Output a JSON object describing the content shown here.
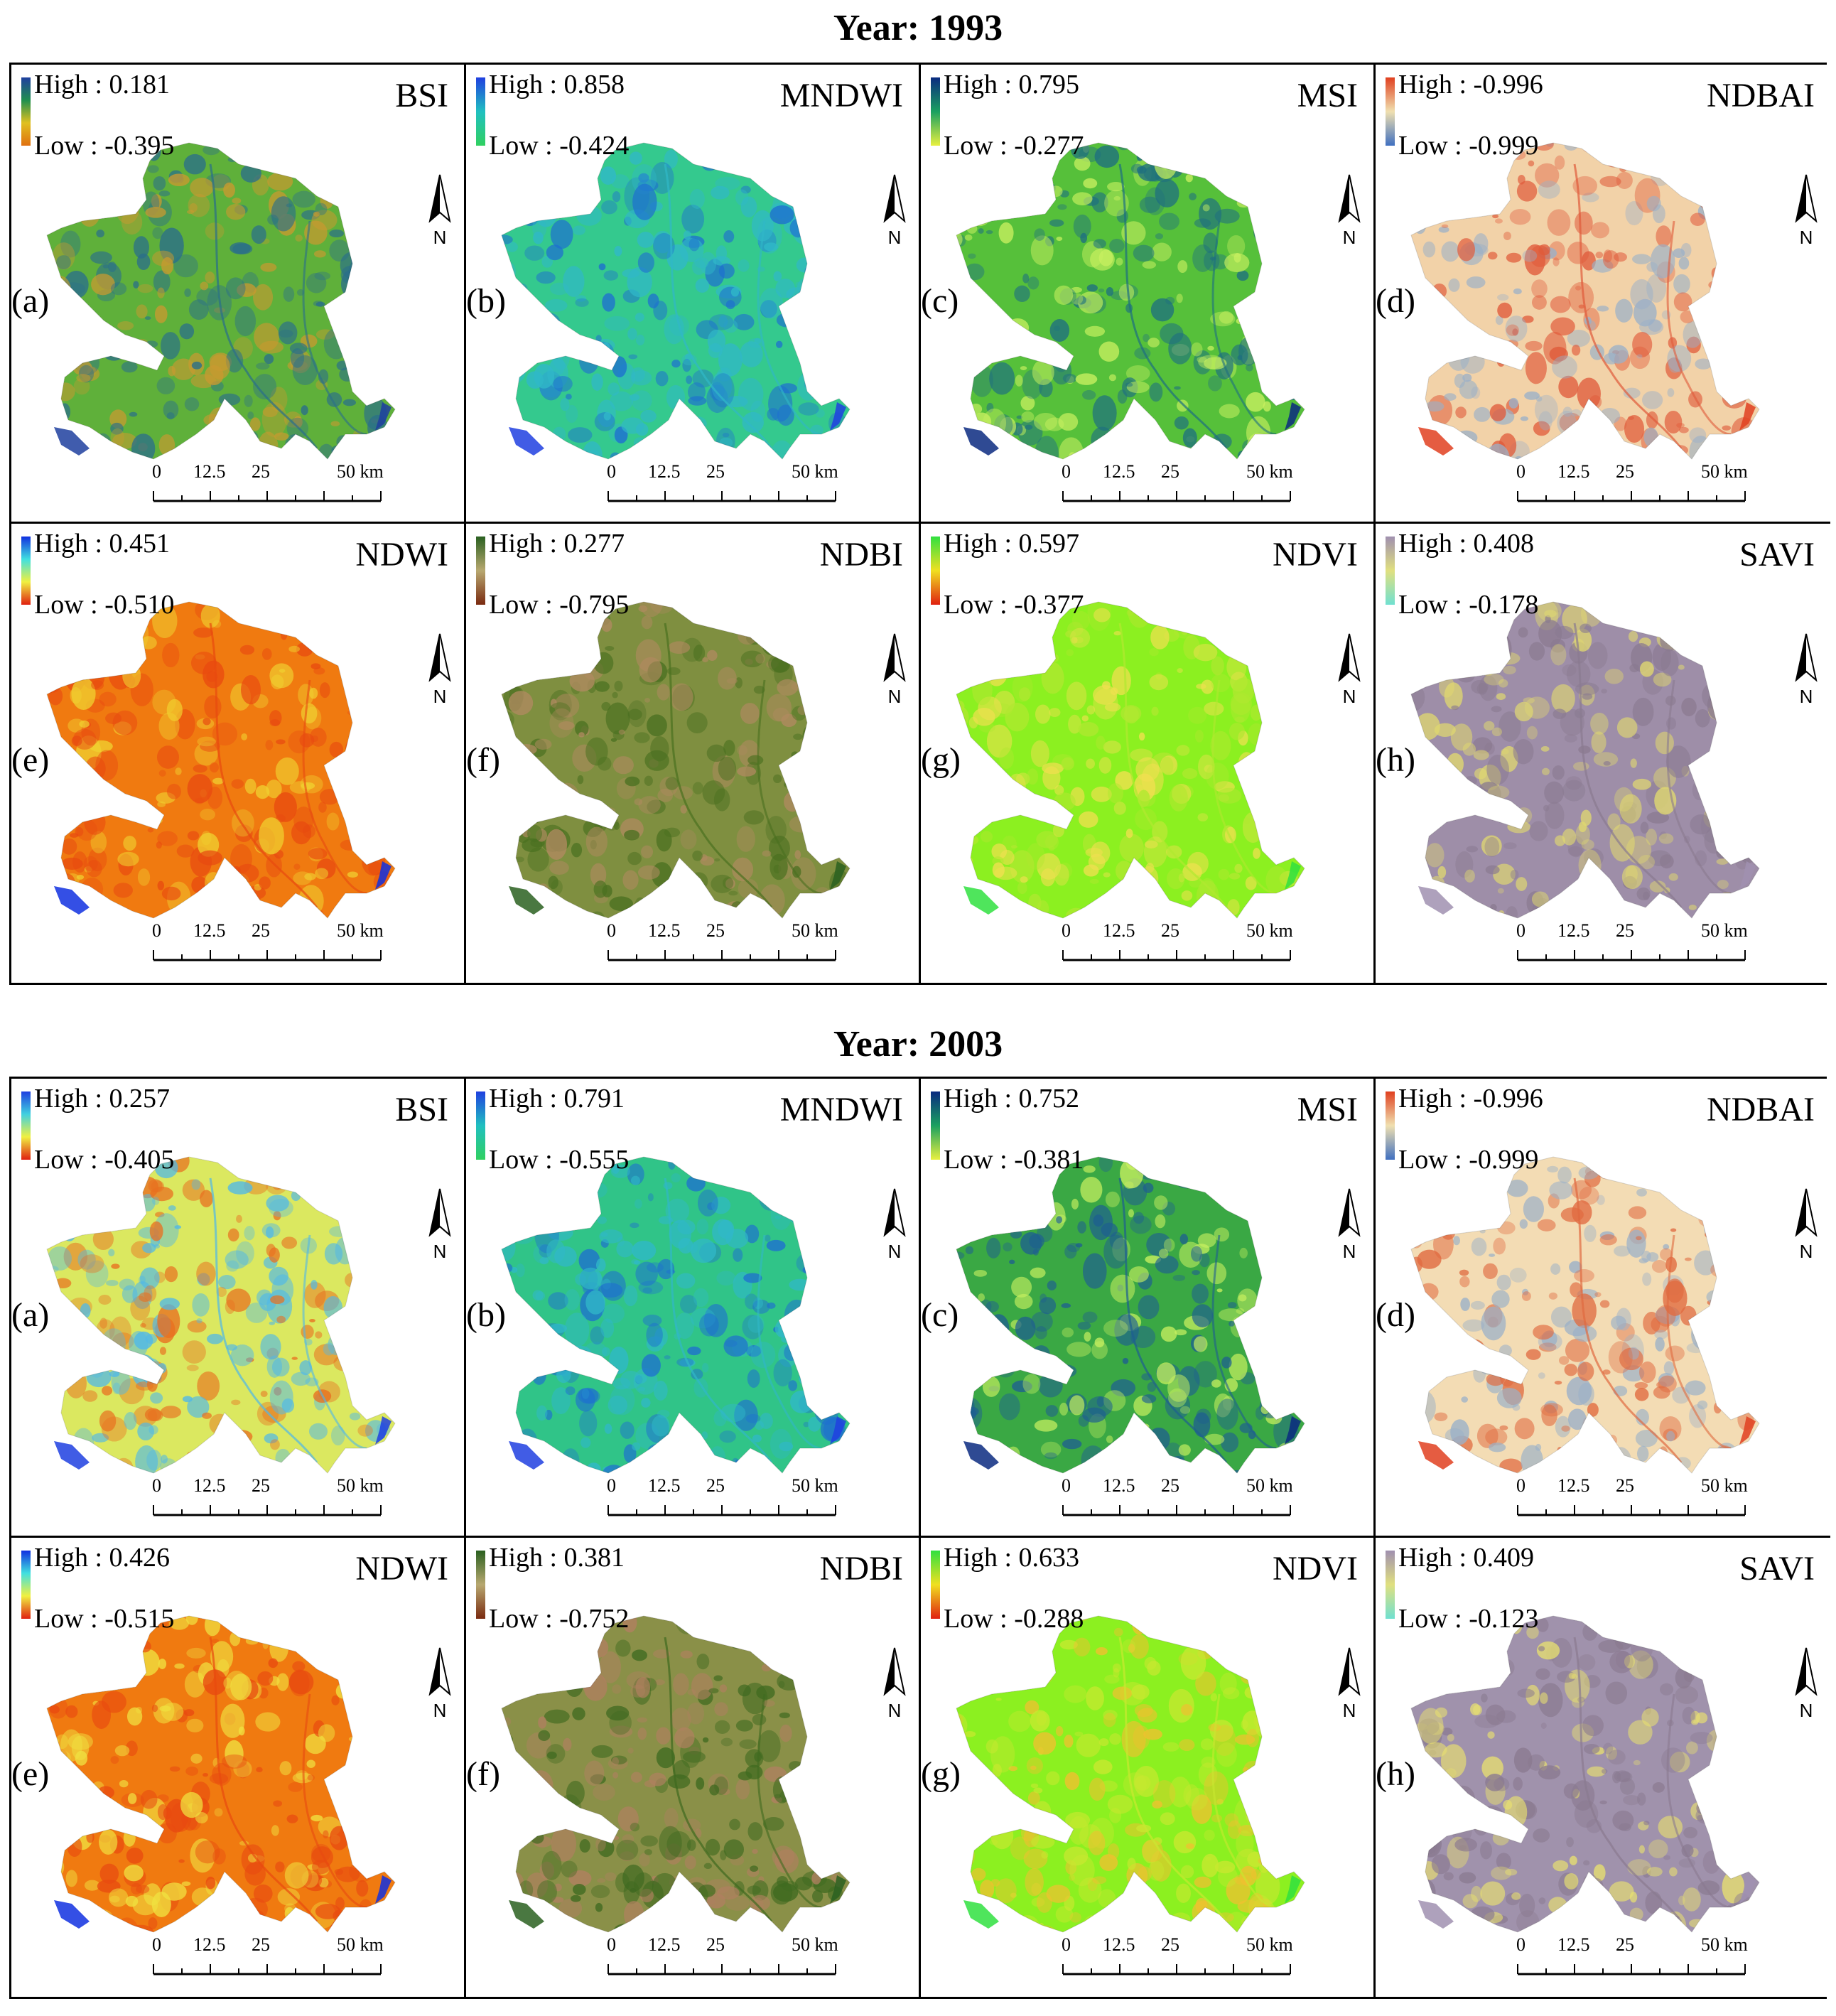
{
  "sections": [
    {
      "title": "Year: 1993",
      "panels": [
        {
          "letter": "(a)",
          "name": "BSI",
          "high_label": "High : 0.181",
          "low_label": "Low : -0.395",
          "ramp": [
            "#1f3f9f",
            "#1f8f4f",
            "#e0c020",
            "#e07010"
          ],
          "fill": "#5fb03a",
          "accent": "#2a6f8a",
          "accent2": "#c89a30"
        },
        {
          "letter": "(b)",
          "name": "MNDWI",
          "high_label": "High : 0.858",
          "low_label": "Low : -0.424",
          "ramp": [
            "#2040e0",
            "#20c0c0",
            "#30d060"
          ],
          "fill": "#34c98e",
          "accent": "#30b8c8",
          "accent2": "#1e6fd0"
        },
        {
          "letter": "(c)",
          "name": "MSI",
          "high_label": "High : 0.795",
          "low_label": "Low : -0.277",
          "ramp": [
            "#0a2a80",
            "#1aa060",
            "#e8f040"
          ],
          "fill": "#56c03a",
          "accent": "#1e6f80",
          "accent2": "#c8f060"
        },
        {
          "letter": "(d)",
          "name": "NDBAI",
          "high_label": "High : -0.996",
          "low_label": "Low : -0.999",
          "ramp": [
            "#e04020",
            "#f0e0b0",
            "#4070c0"
          ],
          "fill": "#f2d2a8",
          "accent": "#e05a3a",
          "accent2": "#9ab0c8"
        },
        {
          "letter": "(e)",
          "name": "NDWI",
          "high_label": "High : 0.451",
          "low_label": "Low : -0.510",
          "ramp": [
            "#1030e0",
            "#40e0e0",
            "#f0f040",
            "#e02010"
          ],
          "fill": "#f07a10",
          "accent": "#e84a10",
          "accent2": "#f0d030"
        },
        {
          "letter": "(f)",
          "name": "NDBI",
          "high_label": "High : 0.277",
          "low_label": "Low : -0.795",
          "ramp": [
            "#2a6020",
            "#b8a870",
            "#7a2a10"
          ],
          "fill": "#7f8f40",
          "accent": "#4a7020",
          "accent2": "#b08a60"
        },
        {
          "letter": "(g)",
          "name": "NDVI",
          "high_label": "High : 0.597",
          "low_label": "Low : -0.377",
          "ramp": [
            "#30e040",
            "#f0e020",
            "#e02010"
          ],
          "fill": "#8cf020",
          "accent": "#b0e830",
          "accent2": "#f0e050"
        },
        {
          "letter": "(h)",
          "name": "SAVI",
          "high_label": "High : 0.408",
          "low_label": "Low : -0.178",
          "ramp": [
            "#a090b0",
            "#e0e080",
            "#70e0d0"
          ],
          "fill": "#9e8ea8",
          "accent": "#8a7a90",
          "accent2": "#e0d870"
        }
      ]
    },
    {
      "title": "Year: 2003",
      "panels": [
        {
          "letter": "(a)",
          "name": "BSI",
          "high_label": "High : 0.257",
          "low_label": "Low : -0.405",
          "ramp": [
            "#1f3fe0",
            "#40d0e0",
            "#f0f040",
            "#e02010"
          ],
          "fill": "#dbe860",
          "accent": "#50b8e8",
          "accent2": "#e87020"
        },
        {
          "letter": "(b)",
          "name": "MNDWI",
          "high_label": "High : 0.791",
          "low_label": "Low : -0.555",
          "ramp": [
            "#2040e0",
            "#20c0c0",
            "#30d060"
          ],
          "fill": "#30c488",
          "accent": "#30b8c8",
          "accent2": "#1e6fd0"
        },
        {
          "letter": "(c)",
          "name": "MSI",
          "high_label": "High : 0.752",
          "low_label": "Low : -0.381",
          "ramp": [
            "#0a2a80",
            "#1aa060",
            "#e8f040"
          ],
          "fill": "#3aa844",
          "accent": "#1e5f90",
          "accent2": "#c8f060"
        },
        {
          "letter": "(d)",
          "name": "NDBAI",
          "high_label": "High : -0.996",
          "low_label": "Low : -0.999",
          "ramp": [
            "#e04020",
            "#f0e0b0",
            "#4070c0"
          ],
          "fill": "#f3dcb4",
          "accent": "#e06a40",
          "accent2": "#9ab0c8"
        },
        {
          "letter": "(e)",
          "name": "NDWI",
          "high_label": "High : 0.426",
          "low_label": "Low : -0.515",
          "ramp": [
            "#1030e0",
            "#40e0e0",
            "#f0f040",
            "#e02010"
          ],
          "fill": "#f07a10",
          "accent": "#e84a10",
          "accent2": "#f0e040"
        },
        {
          "letter": "(f)",
          "name": "NDBI",
          "high_label": "High : 0.381",
          "low_label": "Low : -0.752",
          "ramp": [
            "#2a6020",
            "#b8a870",
            "#7a2a10"
          ],
          "fill": "#8a9048",
          "accent": "#3f6a20",
          "accent2": "#b08060"
        },
        {
          "letter": "(g)",
          "name": "NDVI",
          "high_label": "High : 0.633",
          "low_label": "Low : -0.288",
          "ramp": [
            "#30e040",
            "#f0e020",
            "#e02010"
          ],
          "fill": "#8cf020",
          "accent": "#c8e830",
          "accent2": "#f0c030"
        },
        {
          "letter": "(h)",
          "name": "SAVI",
          "high_label": "High : 0.409",
          "low_label": "Low : -0.123",
          "ramp": [
            "#a090b0",
            "#e0e080",
            "#70e0d0"
          ],
          "fill": "#a092ac",
          "accent": "#8a7a90",
          "accent2": "#e8e070"
        }
      ]
    }
  ],
  "north_label": "N",
  "scale_labels": [
    "0",
    "12.5",
    "25",
    "50 km"
  ],
  "water_color": "#1030d0"
}
